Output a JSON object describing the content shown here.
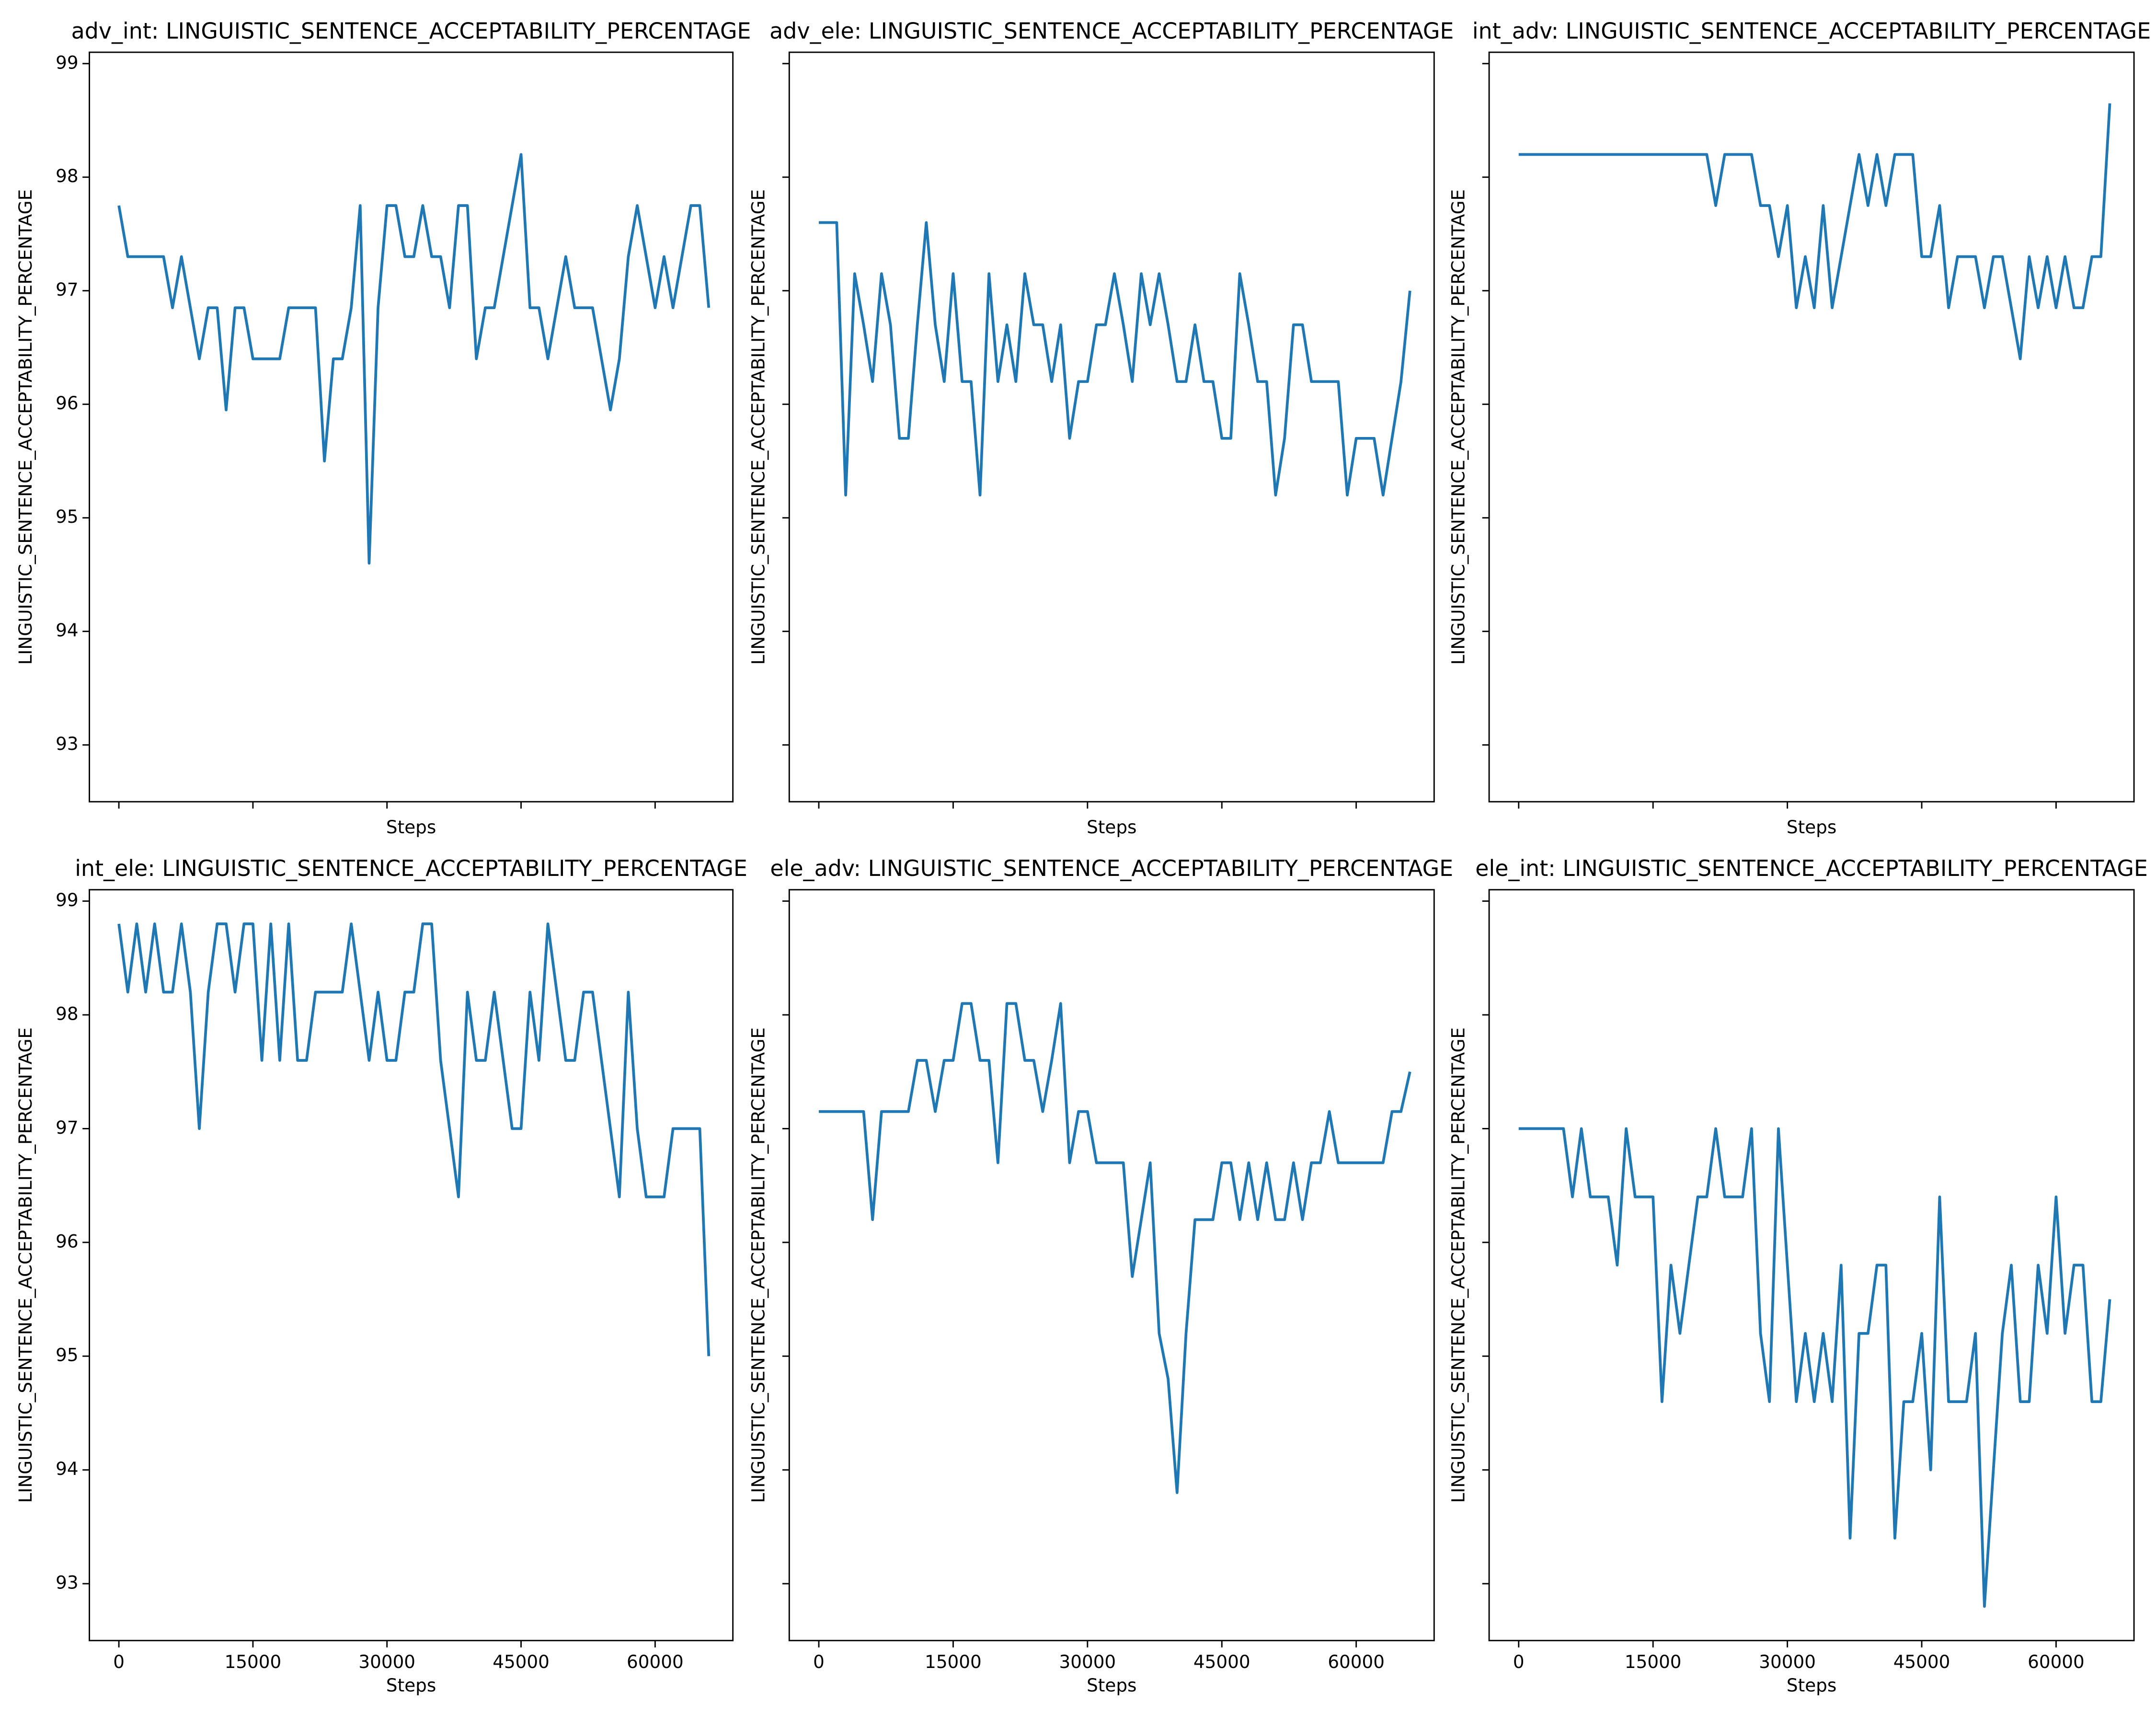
{
  "chart_data": [
    {
      "type": "line",
      "title": "adv_int: LINGUISTIC_SENTENCE_ACCEPTABILITY_PERCENTAGE",
      "xlabel": "Steps",
      "ylabel": "LINGUISTIC_SENTENCE_ACCEPTABILITY_PERCENTAGE",
      "x": [
        0,
        1000,
        2000,
        3000,
        4000,
        5000,
        6000,
        7000,
        8000,
        9000,
        10000,
        11000,
        12000,
        13000,
        14000,
        15000,
        16000,
        17000,
        18000,
        19000,
        20000,
        21000,
        22000,
        23000,
        24000,
        25000,
        26000,
        27000,
        28000,
        29000,
        30000,
        31000,
        32000,
        33000,
        34000,
        35000,
        36000,
        37000,
        38000,
        39000,
        40000,
        41000,
        42000,
        43000,
        44000,
        45000,
        46000,
        47000,
        48000,
        49000,
        50000,
        51000,
        52000,
        53000,
        54000,
        55000,
        56000,
        57000,
        58000,
        59000,
        60000,
        61000,
        62000,
        63000,
        64000,
        65000,
        66000
      ],
      "series": [
        {
          "name": "adv_int",
          "color": "#1f77b4",
          "values": [
            97.75,
            97.3,
            97.3,
            97.3,
            97.3,
            97.3,
            96.85,
            97.3,
            96.85,
            96.4,
            96.85,
            96.85,
            95.95,
            96.85,
            96.85,
            96.4,
            96.4,
            96.4,
            96.4,
            96.85,
            96.85,
            96.85,
            96.85,
            95.5,
            96.4,
            96.4,
            96.85,
            97.75,
            94.6,
            96.85,
            97.75,
            97.75,
            97.3,
            97.3,
            97.75,
            97.3,
            97.3,
            96.85,
            97.75,
            97.75,
            96.4,
            96.85,
            96.85,
            97.3,
            97.75,
            98.2,
            96.85,
            96.85,
            96.4,
            96.85,
            97.3,
            96.85,
            96.85,
            96.85,
            96.4,
            95.95,
            96.4,
            97.3,
            97.75,
            97.3,
            96.85,
            97.3,
            96.85,
            97.3,
            97.75,
            97.75,
            96.85
          ]
        }
      ],
      "xlim": [
        -3300,
        68700
      ],
      "ylim": [
        92.5,
        99.1
      ],
      "xticks": [
        0,
        15000,
        30000,
        45000,
        60000
      ],
      "yticks": [
        93,
        94,
        95,
        96,
        97,
        98,
        99
      ],
      "show_xtick_labels": false,
      "show_ytick_labels": true
    },
    {
      "type": "line",
      "title": "adv_ele: LINGUISTIC_SENTENCE_ACCEPTABILITY_PERCENTAGE",
      "xlabel": "Steps",
      "ylabel": "LINGUISTIC_SENTENCE_ACCEPTABILITY_PERCENTAGE",
      "x": [
        0,
        1000,
        2000,
        3000,
        4000,
        5000,
        6000,
        7000,
        8000,
        9000,
        10000,
        11000,
        12000,
        13000,
        14000,
        15000,
        16000,
        17000,
        18000,
        19000,
        20000,
        21000,
        22000,
        23000,
        24000,
        25000,
        26000,
        27000,
        28000,
        29000,
        30000,
        31000,
        32000,
        33000,
        34000,
        35000,
        36000,
        37000,
        38000,
        39000,
        40000,
        41000,
        42000,
        43000,
        44000,
        45000,
        46000,
        47000,
        48000,
        49000,
        50000,
        51000,
        52000,
        53000,
        54000,
        55000,
        56000,
        57000,
        58000,
        59000,
        60000,
        61000,
        62000,
        63000,
        64000,
        65000,
        66000
      ],
      "series": [
        {
          "name": "adv_ele",
          "color": "#1f77b4",
          "values": [
            97.6,
            97.6,
            97.6,
            95.2,
            97.15,
            96.7,
            96.2,
            97.15,
            96.7,
            95.7,
            95.7,
            96.7,
            97.6,
            96.7,
            96.2,
            97.15,
            96.2,
            96.2,
            95.2,
            97.15,
            96.2,
            96.7,
            96.2,
            97.15,
            96.7,
            96.7,
            96.2,
            96.7,
            95.7,
            96.2,
            96.2,
            96.7,
            96.7,
            97.15,
            96.7,
            96.2,
            97.15,
            96.7,
            97.15,
            96.7,
            96.2,
            96.2,
            96.7,
            96.2,
            96.2,
            95.7,
            95.7,
            97.15,
            96.7,
            96.2,
            96.2,
            95.2,
            95.7,
            96.7,
            96.7,
            96.2,
            96.2,
            96.2,
            96.2,
            95.2,
            95.7,
            95.7,
            95.7,
            95.2,
            95.7,
            96.2,
            97.0
          ]
        }
      ],
      "xlim": [
        -3300,
        68700
      ],
      "ylim": [
        92.5,
        99.1
      ],
      "xticks": [
        0,
        15000,
        30000,
        45000,
        60000
      ],
      "yticks": [
        93,
        94,
        95,
        96,
        97,
        98,
        99
      ],
      "show_xtick_labels": false,
      "show_ytick_labels": false
    },
    {
      "type": "line",
      "title": "int_adv: LINGUISTIC_SENTENCE_ACCEPTABILITY_PERCENTAGE",
      "xlabel": "Steps",
      "ylabel": "LINGUISTIC_SENTENCE_ACCEPTABILITY_PERCENTAGE",
      "x": [
        0,
        1000,
        2000,
        3000,
        4000,
        5000,
        6000,
        7000,
        8000,
        9000,
        10000,
        11000,
        12000,
        13000,
        14000,
        15000,
        16000,
        17000,
        18000,
        19000,
        20000,
        21000,
        22000,
        23000,
        24000,
        25000,
        26000,
        27000,
        28000,
        29000,
        30000,
        31000,
        32000,
        33000,
        34000,
        35000,
        36000,
        37000,
        38000,
        39000,
        40000,
        41000,
        42000,
        43000,
        44000,
        45000,
        46000,
        47000,
        48000,
        49000,
        50000,
        51000,
        52000,
        53000,
        54000,
        55000,
        56000,
        57000,
        58000,
        59000,
        60000,
        61000,
        62000,
        63000,
        64000,
        65000,
        66000
      ],
      "series": [
        {
          "name": "int_adv",
          "color": "#1f77b4",
          "values": [
            98.2,
            98.2,
            98.2,
            98.2,
            98.2,
            98.2,
            98.2,
            98.2,
            98.2,
            98.2,
            98.2,
            98.2,
            98.2,
            98.2,
            98.2,
            98.2,
            98.2,
            98.2,
            98.2,
            98.2,
            98.2,
            98.2,
            97.75,
            98.2,
            98.2,
            98.2,
            98.2,
            97.75,
            97.75,
            97.3,
            97.75,
            96.85,
            97.3,
            96.85,
            97.75,
            96.85,
            97.3,
            97.75,
            98.2,
            97.75,
            98.2,
            97.75,
            98.2,
            98.2,
            98.2,
            97.3,
            97.3,
            97.75,
            96.85,
            97.3,
            97.3,
            97.3,
            96.85,
            97.3,
            97.3,
            96.85,
            96.4,
            97.3,
            96.85,
            97.3,
            96.85,
            97.3,
            96.85,
            96.85,
            97.3,
            97.3,
            98.65
          ]
        }
      ],
      "xlim": [
        -3300,
        68700
      ],
      "ylim": [
        92.5,
        99.1
      ],
      "xticks": [
        0,
        15000,
        30000,
        45000,
        60000
      ],
      "yticks": [
        93,
        94,
        95,
        96,
        97,
        98,
        99
      ],
      "show_xtick_labels": false,
      "show_ytick_labels": false
    },
    {
      "type": "line",
      "title": "int_ele: LINGUISTIC_SENTENCE_ACCEPTABILITY_PERCENTAGE",
      "xlabel": "Steps",
      "ylabel": "LINGUISTIC_SENTENCE_ACCEPTABILITY_PERCENTAGE",
      "x": [
        0,
        1000,
        2000,
        3000,
        4000,
        5000,
        6000,
        7000,
        8000,
        9000,
        10000,
        11000,
        12000,
        13000,
        14000,
        15000,
        16000,
        17000,
        18000,
        19000,
        20000,
        21000,
        22000,
        23000,
        24000,
        25000,
        26000,
        27000,
        28000,
        29000,
        30000,
        31000,
        32000,
        33000,
        34000,
        35000,
        36000,
        37000,
        38000,
        39000,
        40000,
        41000,
        42000,
        43000,
        44000,
        45000,
        46000,
        47000,
        48000,
        49000,
        50000,
        51000,
        52000,
        53000,
        54000,
        55000,
        56000,
        57000,
        58000,
        59000,
        60000,
        61000,
        62000,
        63000,
        64000,
        65000,
        66000
      ],
      "series": [
        {
          "name": "int_ele",
          "color": "#1f77b4",
          "values": [
            98.8,
            98.2,
            98.8,
            98.2,
            98.8,
            98.2,
            98.2,
            98.8,
            98.2,
            97.0,
            98.2,
            98.8,
            98.8,
            98.2,
            98.8,
            98.8,
            97.6,
            98.8,
            97.6,
            98.8,
            97.6,
            97.6,
            98.2,
            98.2,
            98.2,
            98.2,
            98.8,
            98.2,
            97.6,
            98.2,
            97.6,
            97.6,
            98.2,
            98.2,
            98.8,
            98.8,
            97.6,
            97.0,
            96.4,
            98.2,
            97.6,
            97.6,
            98.2,
            97.6,
            97.0,
            97.0,
            98.2,
            97.6,
            98.8,
            98.2,
            97.6,
            97.6,
            98.2,
            98.2,
            97.6,
            97.0,
            96.4,
            98.2,
            97.0,
            96.4,
            96.4,
            96.4,
            97.0,
            97.0,
            97.0,
            97.0,
            95.0
          ]
        }
      ],
      "xlim": [
        -3300,
        68700
      ],
      "ylim": [
        92.5,
        99.1
      ],
      "xticks": [
        0,
        15000,
        30000,
        45000,
        60000
      ],
      "yticks": [
        93,
        94,
        95,
        96,
        97,
        98,
        99
      ],
      "show_xtick_labels": true,
      "show_ytick_labels": true
    },
    {
      "type": "line",
      "title": "ele_adv: LINGUISTIC_SENTENCE_ACCEPTABILITY_PERCENTAGE",
      "xlabel": "Steps",
      "ylabel": "LINGUISTIC_SENTENCE_ACCEPTABILITY_PERCENTAGE",
      "x": [
        0,
        1000,
        2000,
        3000,
        4000,
        5000,
        6000,
        7000,
        8000,
        9000,
        10000,
        11000,
        12000,
        13000,
        14000,
        15000,
        16000,
        17000,
        18000,
        19000,
        20000,
        21000,
        22000,
        23000,
        24000,
        25000,
        26000,
        27000,
        28000,
        29000,
        30000,
        31000,
        32000,
        33000,
        34000,
        35000,
        36000,
        37000,
        38000,
        39000,
        40000,
        41000,
        42000,
        43000,
        44000,
        45000,
        46000,
        47000,
        48000,
        49000,
        50000,
        51000,
        52000,
        53000,
        54000,
        55000,
        56000,
        57000,
        58000,
        59000,
        60000,
        61000,
        62000,
        63000,
        64000,
        65000,
        66000
      ],
      "series": [
        {
          "name": "ele_adv",
          "color": "#1f77b4",
          "values": [
            97.15,
            97.15,
            97.15,
            97.15,
            97.15,
            97.15,
            96.2,
            97.15,
            97.15,
            97.15,
            97.15,
            97.6,
            97.6,
            97.15,
            97.6,
            97.6,
            98.1,
            98.1,
            97.6,
            97.6,
            96.7,
            98.1,
            98.1,
            97.6,
            97.6,
            97.15,
            97.6,
            98.1,
            96.7,
            97.15,
            97.15,
            96.7,
            96.7,
            96.7,
            96.7,
            95.7,
            96.2,
            96.7,
            95.2,
            94.8,
            93.8,
            95.2,
            96.2,
            96.2,
            96.2,
            96.7,
            96.7,
            96.2,
            96.7,
            96.2,
            96.7,
            96.2,
            96.2,
            96.7,
            96.2,
            96.7,
            96.7,
            97.15,
            96.7,
            96.7,
            96.7,
            96.7,
            96.7,
            96.7,
            97.15,
            97.15,
            97.5
          ]
        }
      ],
      "xlim": [
        -3300,
        68700
      ],
      "ylim": [
        92.5,
        99.1
      ],
      "xticks": [
        0,
        15000,
        30000,
        45000,
        60000
      ],
      "yticks": [
        93,
        94,
        95,
        96,
        97,
        98,
        99
      ],
      "show_xtick_labels": true,
      "show_ytick_labels": false
    },
    {
      "type": "line",
      "title": "ele_int: LINGUISTIC_SENTENCE_ACCEPTABILITY_PERCENTAGE",
      "xlabel": "Steps",
      "ylabel": "LINGUISTIC_SENTENCE_ACCEPTABILITY_PERCENTAGE",
      "x": [
        0,
        1000,
        2000,
        3000,
        4000,
        5000,
        6000,
        7000,
        8000,
        9000,
        10000,
        11000,
        12000,
        13000,
        14000,
        15000,
        16000,
        17000,
        18000,
        19000,
        20000,
        21000,
        22000,
        23000,
        24000,
        25000,
        26000,
        27000,
        28000,
        29000,
        30000,
        31000,
        32000,
        33000,
        34000,
        35000,
        36000,
        37000,
        38000,
        39000,
        40000,
        41000,
        42000,
        43000,
        44000,
        45000,
        46000,
        47000,
        48000,
        49000,
        50000,
        51000,
        52000,
        53000,
        54000,
        55000,
        56000,
        57000,
        58000,
        59000,
        60000,
        61000,
        62000,
        63000,
        64000,
        65000,
        66000
      ],
      "series": [
        {
          "name": "ele_int",
          "color": "#1f77b4",
          "values": [
            97.0,
            97.0,
            97.0,
            97.0,
            97.0,
            97.0,
            96.4,
            97.0,
            96.4,
            96.4,
            96.4,
            95.8,
            97.0,
            96.4,
            96.4,
            96.4,
            94.6,
            95.8,
            95.2,
            95.8,
            96.4,
            96.4,
            97.0,
            96.4,
            96.4,
            96.4,
            97.0,
            95.2,
            94.6,
            97.0,
            95.8,
            94.6,
            95.2,
            94.6,
            95.2,
            94.6,
            95.8,
            93.4,
            95.2,
            95.2,
            95.8,
            95.8,
            93.4,
            94.6,
            94.6,
            95.2,
            94.0,
            96.4,
            94.6,
            94.6,
            94.6,
            95.2,
            92.8,
            94.0,
            95.2,
            95.8,
            94.6,
            94.6,
            95.8,
            95.2,
            96.4,
            95.2,
            95.8,
            95.8,
            94.6,
            94.6,
            95.5
          ]
        }
      ],
      "xlim": [
        -3300,
        68700
      ],
      "ylim": [
        92.5,
        99.1
      ],
      "xticks": [
        0,
        15000,
        30000,
        45000,
        60000
      ],
      "yticks": [
        93,
        94,
        95,
        96,
        97,
        98,
        99
      ],
      "show_xtick_labels": true,
      "show_ytick_labels": false
    }
  ]
}
